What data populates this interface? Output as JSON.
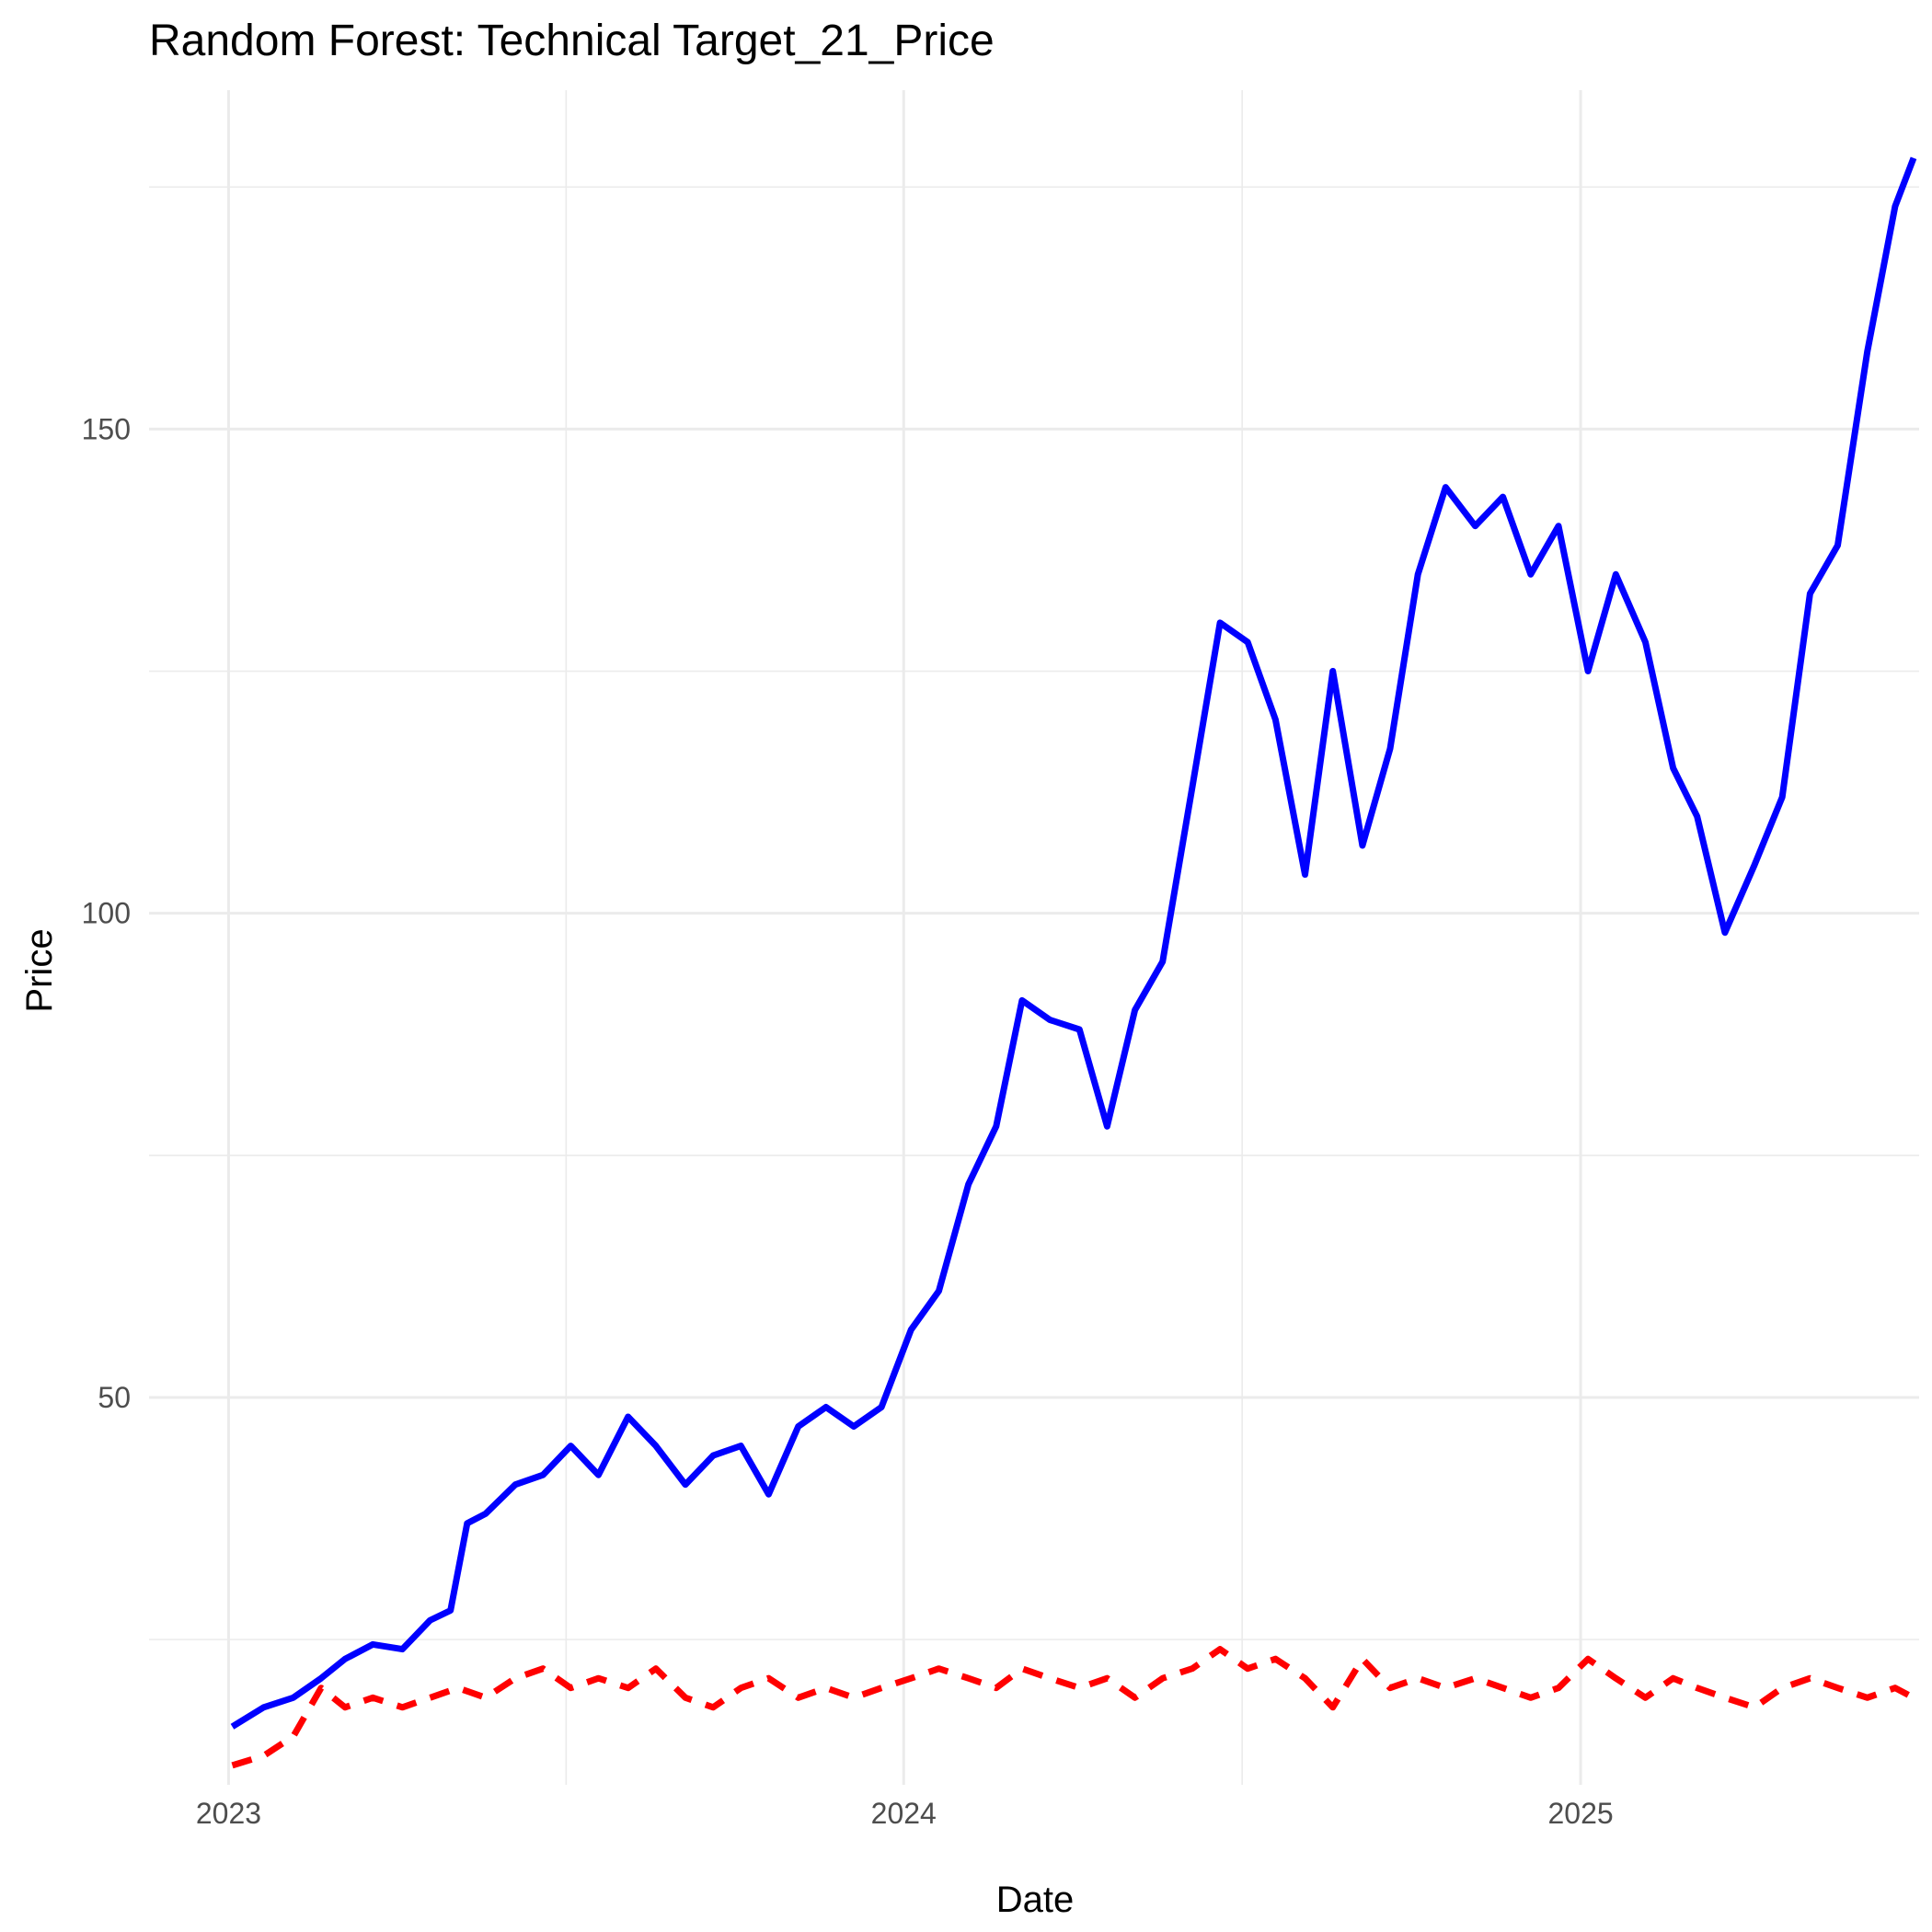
{
  "chart_data": {
    "type": "line",
    "title": "Random Forest: Technical Target_21_Price",
    "xlabel": "Date",
    "ylabel": "Price",
    "x_type": "date",
    "xlim": [
      "2022-11-19",
      "2025-07-03"
    ],
    "ylim": [
      10,
      185
    ],
    "x_ticks": [
      {
        "label": "2023",
        "date": "2023-01-01"
      },
      {
        "label": "2024",
        "date": "2024-01-01"
      },
      {
        "label": "2025",
        "date": "2025-01-01"
      }
    ],
    "y_ticks": [
      {
        "label": "50",
        "value": 50
      },
      {
        "label": "100",
        "value": 100
      },
      {
        "label": "150",
        "value": 150
      }
    ],
    "grid": true,
    "legend": "none",
    "series": [
      {
        "color": "#0000ff",
        "line_style": "solid",
        "points": [
          [
            "2023-01-03",
            16
          ],
          [
            "2023-01-20",
            18
          ],
          [
            "2023-02-05",
            19
          ],
          [
            "2023-02-20",
            21
          ],
          [
            "2023-03-05",
            23
          ],
          [
            "2023-03-20",
            24.5
          ],
          [
            "2023-04-05",
            24
          ],
          [
            "2023-04-20",
            27
          ],
          [
            "2023-05-01",
            28
          ],
          [
            "2023-05-10",
            37
          ],
          [
            "2023-05-20",
            38
          ],
          [
            "2023-06-05",
            41
          ],
          [
            "2023-06-20",
            42
          ],
          [
            "2023-07-05",
            45
          ],
          [
            "2023-07-20",
            42
          ],
          [
            "2023-08-05",
            48
          ],
          [
            "2023-08-20",
            45
          ],
          [
            "2023-09-05",
            41
          ],
          [
            "2023-09-20",
            44
          ],
          [
            "2023-10-05",
            45
          ],
          [
            "2023-10-20",
            40
          ],
          [
            "2023-11-05",
            47
          ],
          [
            "2023-11-20",
            49
          ],
          [
            "2023-12-05",
            47
          ],
          [
            "2023-12-20",
            49
          ],
          [
            "2024-01-05",
            57
          ],
          [
            "2024-01-20",
            61
          ],
          [
            "2024-02-05",
            72
          ],
          [
            "2024-02-20",
            78
          ],
          [
            "2024-03-05",
            91
          ],
          [
            "2024-03-20",
            89
          ],
          [
            "2024-04-05",
            88
          ],
          [
            "2024-04-20",
            78
          ],
          [
            "2024-05-05",
            90
          ],
          [
            "2024-05-20",
            95
          ],
          [
            "2024-06-05",
            113
          ],
          [
            "2024-06-20",
            130
          ],
          [
            "2024-07-05",
            128
          ],
          [
            "2024-07-20",
            120
          ],
          [
            "2024-08-05",
            104
          ],
          [
            "2024-08-20",
            125
          ],
          [
            "2024-09-05",
            107
          ],
          [
            "2024-09-20",
            117
          ],
          [
            "2024-10-05",
            135
          ],
          [
            "2024-10-20",
            144
          ],
          [
            "2024-11-05",
            140
          ],
          [
            "2024-11-20",
            143
          ],
          [
            "2024-12-05",
            135
          ],
          [
            "2024-12-20",
            140
          ],
          [
            "2025-01-05",
            125
          ],
          [
            "2025-01-20",
            135
          ],
          [
            "2025-02-05",
            128
          ],
          [
            "2025-02-20",
            115
          ],
          [
            "2025-03-05",
            110
          ],
          [
            "2025-03-20",
            98
          ],
          [
            "2025-04-05",
            105
          ],
          [
            "2025-04-20",
            112
          ],
          [
            "2025-05-05",
            133
          ],
          [
            "2025-05-20",
            138
          ],
          [
            "2025-06-05",
            158
          ],
          [
            "2025-06-20",
            173
          ],
          [
            "2025-06-30",
            178
          ]
        ]
      },
      {
        "color": "#ff0000",
        "line_style": "dashed",
        "points": [
          [
            "2023-01-03",
            12
          ],
          [
            "2023-01-20",
            13
          ],
          [
            "2023-02-05",
            15
          ],
          [
            "2023-02-20",
            20
          ],
          [
            "2023-03-05",
            18
          ],
          [
            "2023-03-20",
            19
          ],
          [
            "2023-04-05",
            18
          ],
          [
            "2023-04-20",
            19
          ],
          [
            "2023-05-05",
            20
          ],
          [
            "2023-05-20",
            19
          ],
          [
            "2023-06-05",
            21
          ],
          [
            "2023-06-20",
            22
          ],
          [
            "2023-07-05",
            20
          ],
          [
            "2023-07-20",
            21
          ],
          [
            "2023-08-05",
            20
          ],
          [
            "2023-08-20",
            22
          ],
          [
            "2023-09-05",
            19
          ],
          [
            "2023-09-20",
            18
          ],
          [
            "2023-10-05",
            20
          ],
          [
            "2023-10-20",
            21
          ],
          [
            "2023-11-05",
            19
          ],
          [
            "2023-11-20",
            20
          ],
          [
            "2023-12-05",
            19
          ],
          [
            "2023-12-20",
            20
          ],
          [
            "2024-01-05",
            21
          ],
          [
            "2024-01-20",
            22
          ],
          [
            "2024-02-05",
            21
          ],
          [
            "2024-02-20",
            20
          ],
          [
            "2024-03-05",
            22
          ],
          [
            "2024-03-20",
            21
          ],
          [
            "2024-04-05",
            20
          ],
          [
            "2024-04-20",
            21
          ],
          [
            "2024-05-05",
            19
          ],
          [
            "2024-05-20",
            21
          ],
          [
            "2024-06-05",
            22
          ],
          [
            "2024-06-20",
            24
          ],
          [
            "2024-07-05",
            22
          ],
          [
            "2024-07-20",
            23
          ],
          [
            "2024-08-05",
            21
          ],
          [
            "2024-08-20",
            18
          ],
          [
            "2024-09-05",
            23
          ],
          [
            "2024-09-20",
            20
          ],
          [
            "2024-10-05",
            21
          ],
          [
            "2024-10-20",
            20
          ],
          [
            "2024-11-05",
            21
          ],
          [
            "2024-11-20",
            20
          ],
          [
            "2024-12-05",
            19
          ],
          [
            "2024-12-20",
            20
          ],
          [
            "2025-01-05",
            23
          ],
          [
            "2025-01-20",
            21
          ],
          [
            "2025-02-05",
            19
          ],
          [
            "2025-02-20",
            21
          ],
          [
            "2025-03-05",
            20
          ],
          [
            "2025-03-20",
            19
          ],
          [
            "2025-04-05",
            18
          ],
          [
            "2025-04-20",
            20
          ],
          [
            "2025-05-05",
            21
          ],
          [
            "2025-05-20",
            20
          ],
          [
            "2025-06-05",
            19
          ],
          [
            "2025-06-20",
            20
          ],
          [
            "2025-06-30",
            19
          ]
        ]
      }
    ]
  }
}
